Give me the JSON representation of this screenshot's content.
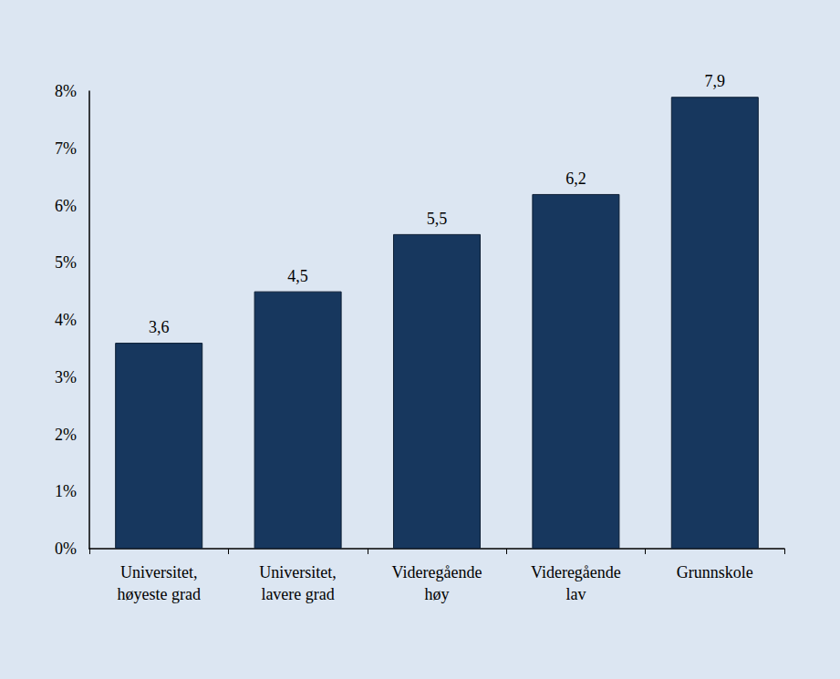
{
  "chart_data": {
    "type": "bar",
    "categories": [
      "Universitet,\nhøyeste grad",
      "Universitet,\nlavere grad",
      "Videregående\nhøy",
      "Videregående\nlav",
      "Grunnskole"
    ],
    "values": [
      3.6,
      4.5,
      5.5,
      6.2,
      7.9
    ],
    "value_labels": [
      "3,6",
      "4,5",
      "5,5",
      "6,2",
      "7,9"
    ],
    "color": "#17375e",
    "ylim": [
      0,
      8
    ],
    "yticks": [
      {
        "value": 0,
        "label": "0%"
      },
      {
        "value": 1,
        "label": "1%"
      },
      {
        "value": 2,
        "label": "2%"
      },
      {
        "value": 3,
        "label": "3%"
      },
      {
        "value": 4,
        "label": "4%"
      },
      {
        "value": 5,
        "label": "5%"
      },
      {
        "value": 6,
        "label": "6%"
      },
      {
        "value": 7,
        "label": "7%"
      },
      {
        "value": 8,
        "label": "8%"
      }
    ],
    "grid": false,
    "data_labels": true
  }
}
